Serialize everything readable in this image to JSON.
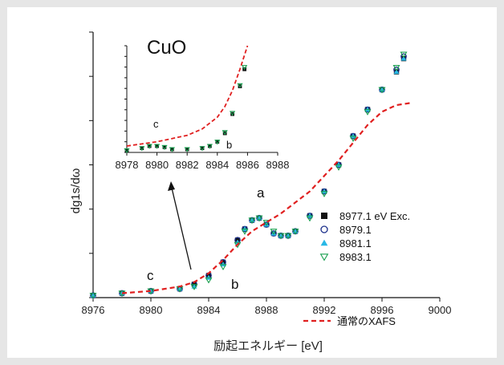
{
  "chart_data": [
    {
      "type": "scatter",
      "xlabel": "励起エネルギー [eV]",
      "ylabel": "dg1s/dω",
      "xlim": [
        8976,
        9000
      ],
      "ylim": [
        0,
        1.2
      ],
      "x_ticks": [
        "8976",
        "8980",
        "8984",
        "8988",
        "8992",
        "8996",
        "9000"
      ],
      "annotations": [
        "a",
        "b",
        "c"
      ],
      "legend_position": "right",
      "series": [
        {
          "name": "8977.1 eV Exc.",
          "marker": "square",
          "color": "#111111",
          "x": [
            8976,
            8978,
            8980,
            8982,
            8983,
            8984,
            8985,
            8986,
            8986.5,
            8987,
            8987.5,
            8988,
            8988.5,
            8989,
            8989.5,
            8990,
            8991,
            8992,
            8993,
            8994,
            8995,
            8996,
            8997,
            8997.5
          ],
          "y": [
            0.01,
            0.02,
            0.03,
            0.04,
            0.06,
            0.1,
            0.16,
            0.26,
            0.31,
            0.35,
            0.36,
            0.33,
            0.29,
            0.28,
            0.28,
            0.3,
            0.37,
            0.48,
            0.6,
            0.73,
            0.85,
            0.94,
            1.02,
            1.08
          ]
        },
        {
          "name": "8979.1",
          "marker": "circle-open",
          "color": "#1a2e8a",
          "x": [
            8976,
            8978,
            8980,
            8982,
            8983,
            8984,
            8985,
            8986,
            8986.5,
            8987,
            8987.5,
            8988,
            8988.5,
            8989,
            8989.5,
            8990,
            8991,
            8992,
            8993,
            8994,
            8995,
            8996,
            8997,
            8997.5
          ],
          "y": [
            0.01,
            0.02,
            0.03,
            0.04,
            0.06,
            0.1,
            0.16,
            0.26,
            0.31,
            0.35,
            0.36,
            0.33,
            0.29,
            0.28,
            0.28,
            0.3,
            0.37,
            0.48,
            0.6,
            0.73,
            0.85,
            0.94,
            1.03,
            1.09
          ]
        },
        {
          "name": "8981.1",
          "marker": "triangle-up",
          "color": "#29b8e6",
          "x": [
            8976,
            8978,
            8980,
            8982,
            8983,
            8984,
            8985,
            8986,
            8986.5,
            8987,
            8987.5,
            8988,
            8988.5,
            8989,
            8989.5,
            8990,
            8991,
            8992,
            8993,
            8994,
            8995,
            8996,
            8997,
            8997.5
          ],
          "y": [
            0.01,
            0.02,
            0.03,
            0.04,
            0.05,
            0.09,
            0.15,
            0.25,
            0.31,
            0.35,
            0.36,
            0.33,
            0.29,
            0.28,
            0.28,
            0.3,
            0.37,
            0.48,
            0.6,
            0.73,
            0.85,
            0.94,
            1.02,
            1.08
          ]
        },
        {
          "name": "8983.1",
          "marker": "triangle-down-open",
          "color": "#1aa050",
          "x": [
            8976,
            8978,
            8980,
            8982,
            8983,
            8984,
            8985,
            8986,
            8986.5,
            8987,
            8987.5,
            8988,
            8988.5,
            8989,
            8989.5,
            8990,
            8991,
            8992,
            8993,
            8994,
            8995,
            8996,
            8997,
            8997.5
          ],
          "y": [
            0.01,
            0.02,
            0.03,
            0.04,
            0.05,
            0.08,
            0.14,
            0.24,
            0.3,
            0.35,
            0.36,
            0.34,
            0.3,
            0.28,
            0.28,
            0.3,
            0.36,
            0.47,
            0.59,
            0.72,
            0.84,
            0.94,
            1.04,
            1.1
          ]
        },
        {
          "name": "通常のXAFS",
          "marker": "dashed-line",
          "color": "#e02020",
          "x": [
            8978,
            8980,
            8982,
            8983,
            8984,
            8985,
            8986,
            8987,
            8988,
            8989,
            8990,
            8991,
            8992,
            8993,
            8994,
            8995,
            8996,
            8997,
            8998
          ],
          "y": [
            0.02,
            0.03,
            0.05,
            0.07,
            0.11,
            0.17,
            0.24,
            0.3,
            0.34,
            0.38,
            0.43,
            0.48,
            0.55,
            0.62,
            0.7,
            0.78,
            0.84,
            0.87,
            0.88
          ]
        }
      ]
    },
    {
      "type": "scatter",
      "title": "CuO",
      "xlim": [
        8978,
        8988
      ],
      "x_ticks": [
        "8978",
        "8980",
        "8982",
        "8984",
        "8986",
        "8988"
      ],
      "annotations": [
        "c",
        "b"
      ],
      "series": [
        {
          "name": "8977.1 eV Exc.",
          "marker": "square",
          "color": "#111111",
          "x": [
            8978,
            8979,
            8979.5,
            8980,
            8980.5,
            8981,
            8982,
            8983,
            8983.5,
            8984,
            8984.5,
            8985,
            8985.5,
            8985.8
          ],
          "y": [
            0.02,
            0.04,
            0.06,
            0.06,
            0.05,
            0.03,
            0.03,
            0.04,
            0.06,
            0.1,
            0.18,
            0.36,
            0.62,
            0.78
          ]
        },
        {
          "name": "8983.1",
          "marker": "triangle-down-open",
          "color": "#1aa050",
          "x": [
            8978,
            8979,
            8979.5,
            8980,
            8980.5,
            8981,
            8982,
            8983,
            8983.5,
            8984,
            8984.5,
            8985,
            8985.5,
            8985.8
          ],
          "y": [
            0.02,
            0.04,
            0.06,
            0.06,
            0.05,
            0.03,
            0.03,
            0.04,
            0.06,
            0.1,
            0.19,
            0.37,
            0.63,
            0.8
          ]
        },
        {
          "name": "通常のXAFS",
          "marker": "dashed-line",
          "color": "#e02020",
          "x": [
            8978,
            8979,
            8980,
            8981,
            8982,
            8983,
            8984,
            8984.5,
            8985,
            8985.5,
            8986
          ],
          "y": [
            0.06,
            0.08,
            0.1,
            0.13,
            0.16,
            0.22,
            0.33,
            0.43,
            0.58,
            0.78,
            1.0
          ]
        }
      ]
    }
  ]
}
